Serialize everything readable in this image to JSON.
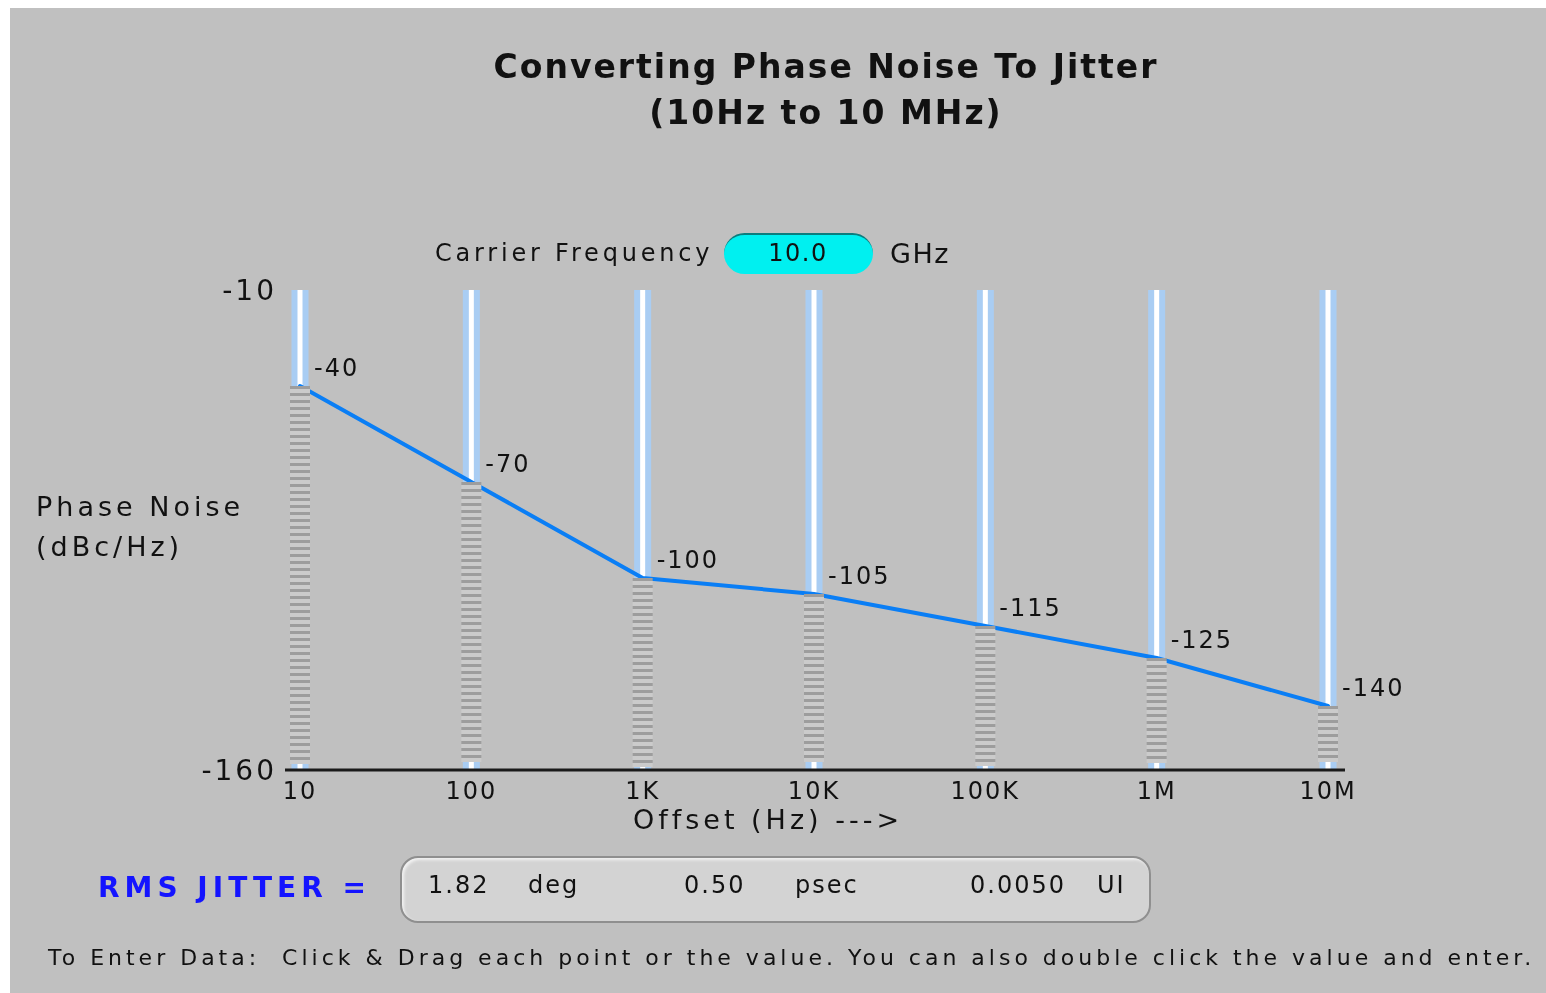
{
  "chart_data": {
    "type": "line",
    "title": "Converting Phase Noise To Jitter",
    "subtitle": "(10Hz to 10 MHz)",
    "xlabel": "Offset (Hz) --->",
    "ylabel": "Phase Noise (dBc/Hz)",
    "categories": [
      "10",
      "100",
      "1K",
      "10K",
      "100K",
      "1M",
      "10M"
    ],
    "values": [
      -40,
      -70,
      -100,
      -105,
      -115,
      -125,
      -140
    ],
    "color": "#0a7ef5",
    "ylim": [
      -160,
      -10
    ],
    "yticks": [
      -160,
      -10
    ],
    "grid": "x",
    "data_labels": true,
    "annotations": [
      "Carrier Frequency",
      "10.0",
      "GHz",
      "RMS JITTER =",
      "1.82",
      "deg",
      "0.50",
      "psec",
      "0.0050",
      "UI",
      "To Enter Data:  Click & Drag each point or the value. You can also double click the value and enter."
    ]
  }
}
